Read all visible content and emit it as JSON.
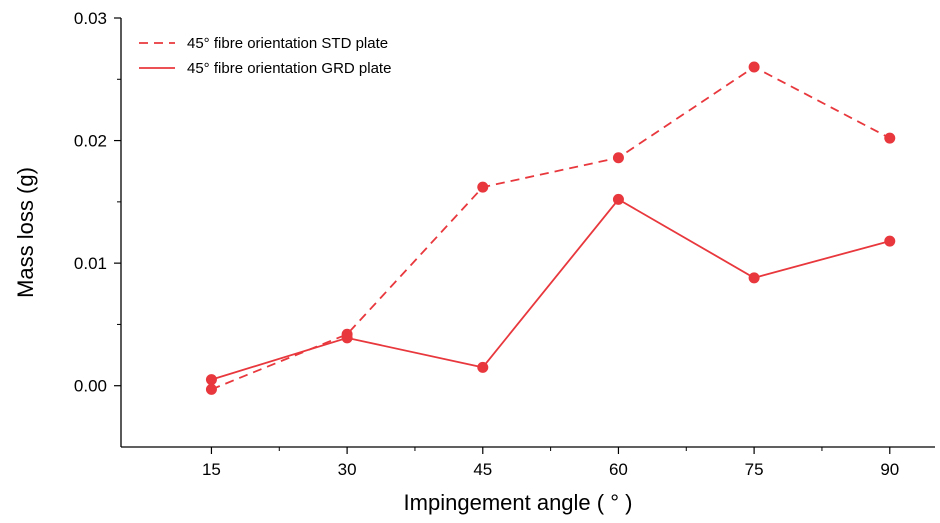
{
  "chart_data": {
    "type": "line",
    "xlabel": "Impingement angle ( ° )",
    "ylabel": "Mass loss (g)",
    "x": [
      15,
      30,
      45,
      60,
      75,
      90
    ],
    "x_ticks": [
      "15",
      "30",
      "45",
      "60",
      "75",
      "90"
    ],
    "y_ticks": [
      "0.00",
      "0.01",
      "0.02",
      "0.03"
    ],
    "xlim": [
      5,
      95
    ],
    "ylim": [
      -0.005,
      0.03
    ],
    "grid": false,
    "legend_position": "top-left",
    "series": [
      {
        "name": "45° fibre orientation STD plate",
        "line_style": "dashed",
        "color": "#e8383d",
        "values": [
          -0.0003,
          0.0042,
          0.0162,
          0.0186,
          0.026,
          0.0202
        ]
      },
      {
        "name": "45° fibre orientation GRD plate",
        "line_style": "solid",
        "color": "#e8383d",
        "values": [
          0.0005,
          0.0039,
          0.0015,
          0.0152,
          0.0088,
          0.0118
        ]
      }
    ]
  }
}
